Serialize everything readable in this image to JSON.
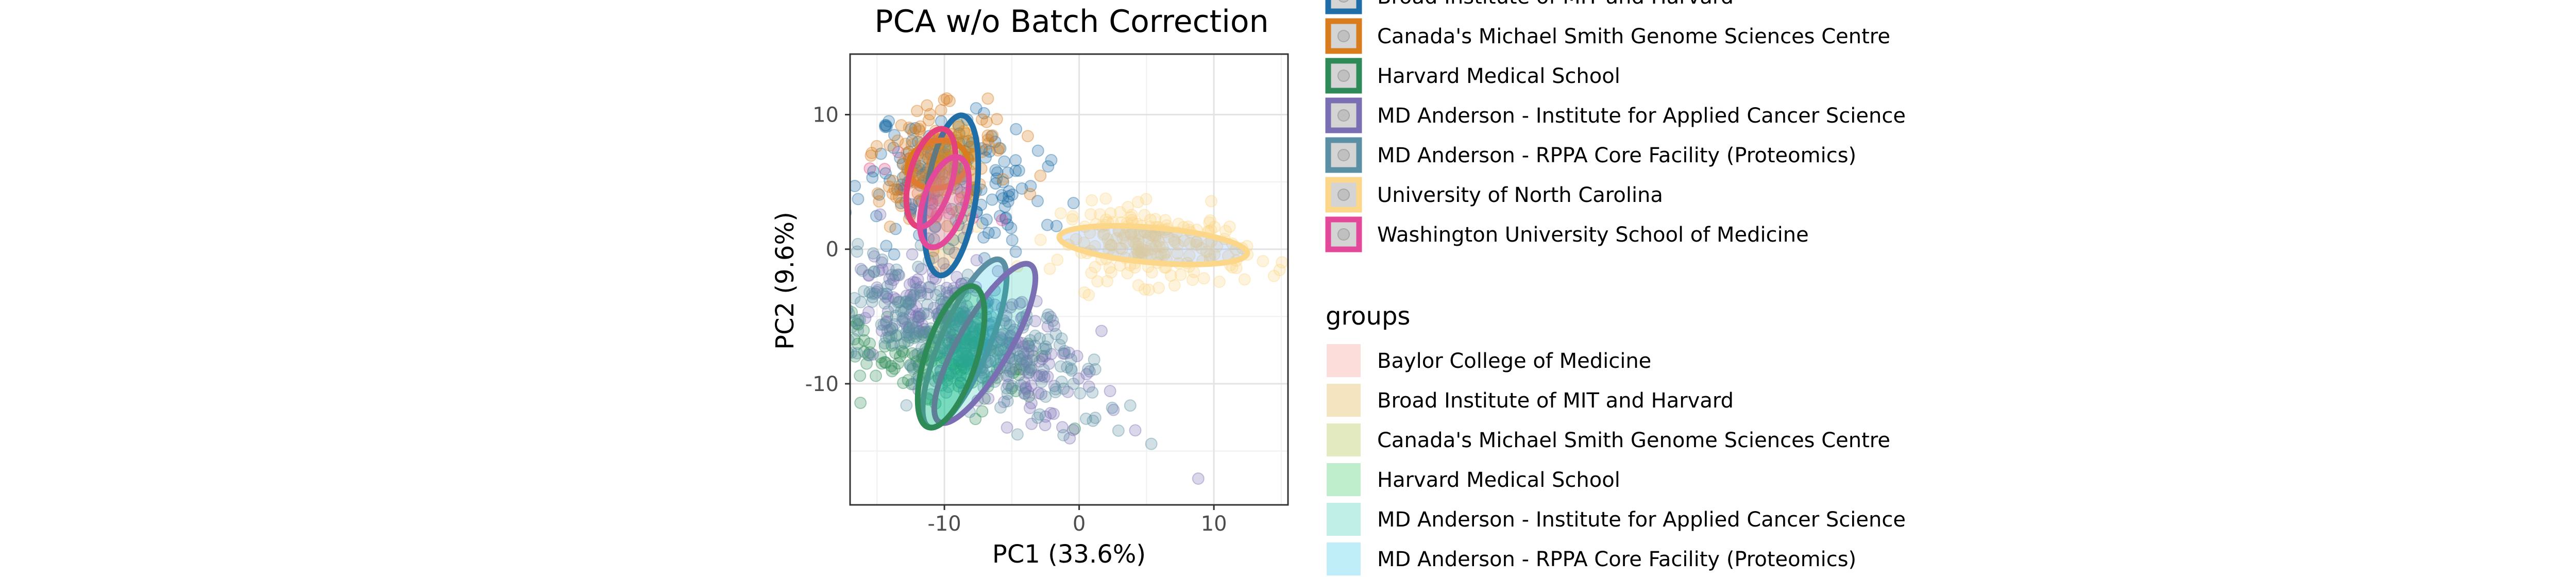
{
  "chart_data": {
    "type": "scatter",
    "title": "PCA w/o Batch Correction",
    "xlabel": "PC1 (33.6%)",
    "ylabel": "PC2 (9.6%)",
    "xlim": [
      -17,
      15.5
    ],
    "ylim": [
      -19,
      14.5
    ],
    "x_ticks": [
      -10,
      0,
      10
    ],
    "y_ticks": [
      -10,
      0,
      10
    ],
    "grid": true,
    "legend_position": "right",
    "series": [
      {
        "name": "Baylor College of Medicine",
        "color": "#e3407c",
        "fill": "#f8766d",
        "n": 14,
        "center": [
          -12,
          6
        ],
        "spread": [
          1.5,
          2.5
        ],
        "rot": 80,
        "ellipse": {
          "cx": -11,
          "cy": 5.3,
          "rx": 7.5,
          "ry": 3.2,
          "rot": 75
        }
      },
      {
        "name": "Broad Institute of MIT and Harvard",
        "color": "#1f6ea8",
        "fill": "#d39200",
        "n": 180,
        "center": [
          -9.5,
          5
        ],
        "spread": [
          2.5,
          3.5
        ],
        "rot": 85,
        "ellipse": {
          "cx": -9.5,
          "cy": 4,
          "rx": 12,
          "ry": 3.7,
          "rot": 82
        }
      },
      {
        "name": "Canada's Michael Smith Genome Sciences Centre",
        "color": "#d97c1e",
        "fill": "#93aa00",
        "n": 150,
        "center": [
          -10.5,
          6.5
        ],
        "spread": [
          2.5,
          1.8
        ],
        "rot": 20,
        "ellipse": {
          "cx": -10.5,
          "cy": 6.3,
          "rx": 4.5,
          "ry": 3.5,
          "rot": 15
        }
      },
      {
        "name": "Harvard Medical School",
        "color": "#2e8b57",
        "fill": "#00ba38",
        "n": 140,
        "center": [
          -11,
          -8
        ],
        "spread": [
          1.5,
          4.5
        ],
        "rot": 80,
        "ellipse": {
          "cx": -9.5,
          "cy": -8,
          "rx": 11,
          "ry": 3.8,
          "rot": 72
        }
      },
      {
        "name": "MD Anderson - Institute for Applied Cancer Science",
        "color": "#7a6fb3",
        "fill": "#00c19f",
        "n": 260,
        "center": [
          -8,
          -6
        ],
        "spread": [
          2,
          5
        ],
        "rot": 60,
        "ellipse": {
          "cx": -7,
          "cy": -7,
          "rx": 13.5,
          "ry": 3.8,
          "rot": 60
        }
      },
      {
        "name": "MD Anderson - RPPA Core Facility (Proteomics)",
        "color": "#5b8fa3",
        "fill": "#00b9e3",
        "n": 300,
        "center": [
          -8.5,
          -7
        ],
        "spread": [
          2,
          5
        ],
        "rot": 65,
        "ellipse": {
          "cx": -8.5,
          "cy": -7,
          "rx": 13.5,
          "ry": 3.6,
          "rot": 67
        }
      },
      {
        "name": "University of North Carolina",
        "color": "#fcd78a",
        "fill": "#619cff",
        "n": 200,
        "center": [
          5.5,
          0.3
        ],
        "spread": [
          3.5,
          1.4
        ],
        "rot": -5,
        "ellipse": {
          "cx": 5.5,
          "cy": 0.3,
          "rx": 14,
          "ry": 2.6,
          "rot": -5
        }
      },
      {
        "name": "Washington University School of Medicine",
        "color": "#e3489a",
        "fill": "#db72fb",
        "n": 10,
        "center": [
          -10.5,
          3.5
        ],
        "spread": [
          1,
          2
        ],
        "rot": 70,
        "ellipse": {
          "cx": -10,
          "cy": 3.5,
          "rx": 7,
          "ry": 3.1,
          "rot": 72
        }
      }
    ],
    "ellipse_draw_order": [
      5,
      4,
      3,
      6,
      1,
      2,
      0,
      7
    ]
  },
  "legend_batches": {
    "items": [
      {
        "label": "Broad Institute of MIT and Harvard",
        "color": "#1f6ea8"
      },
      {
        "label": "Canada's Michael Smith Genome Sciences Centre",
        "color": "#d97c1e"
      },
      {
        "label": "Harvard Medical School",
        "color": "#2e8b57"
      },
      {
        "label": "MD Anderson - Institute for Applied Cancer Science",
        "color": "#7a6fb3"
      },
      {
        "label": "MD Anderson - RPPA Core Facility (Proteomics)",
        "color": "#5b8fa3"
      },
      {
        "label": "University of North Carolina",
        "color": "#fcd78a"
      },
      {
        "label": "Washington University School of Medicine",
        "color": "#e3489a"
      }
    ]
  },
  "legend_groups": {
    "title": "groups",
    "items": [
      {
        "label": "Baylor College of Medicine",
        "color": "#f8766d"
      },
      {
        "label": "Broad Institute of MIT and Harvard",
        "color": "#d39200"
      },
      {
        "label": "Canada's Michael Smith Genome Sciences Centre",
        "color": "#93aa00"
      },
      {
        "label": "Harvard Medical School",
        "color": "#00ba38"
      },
      {
        "label": "MD Anderson - Institute for Applied Cancer Science",
        "color": "#00c19f"
      },
      {
        "label": "MD Anderson - RPPA Core Facility (Proteomics)",
        "color": "#00b9e3"
      }
    ]
  }
}
